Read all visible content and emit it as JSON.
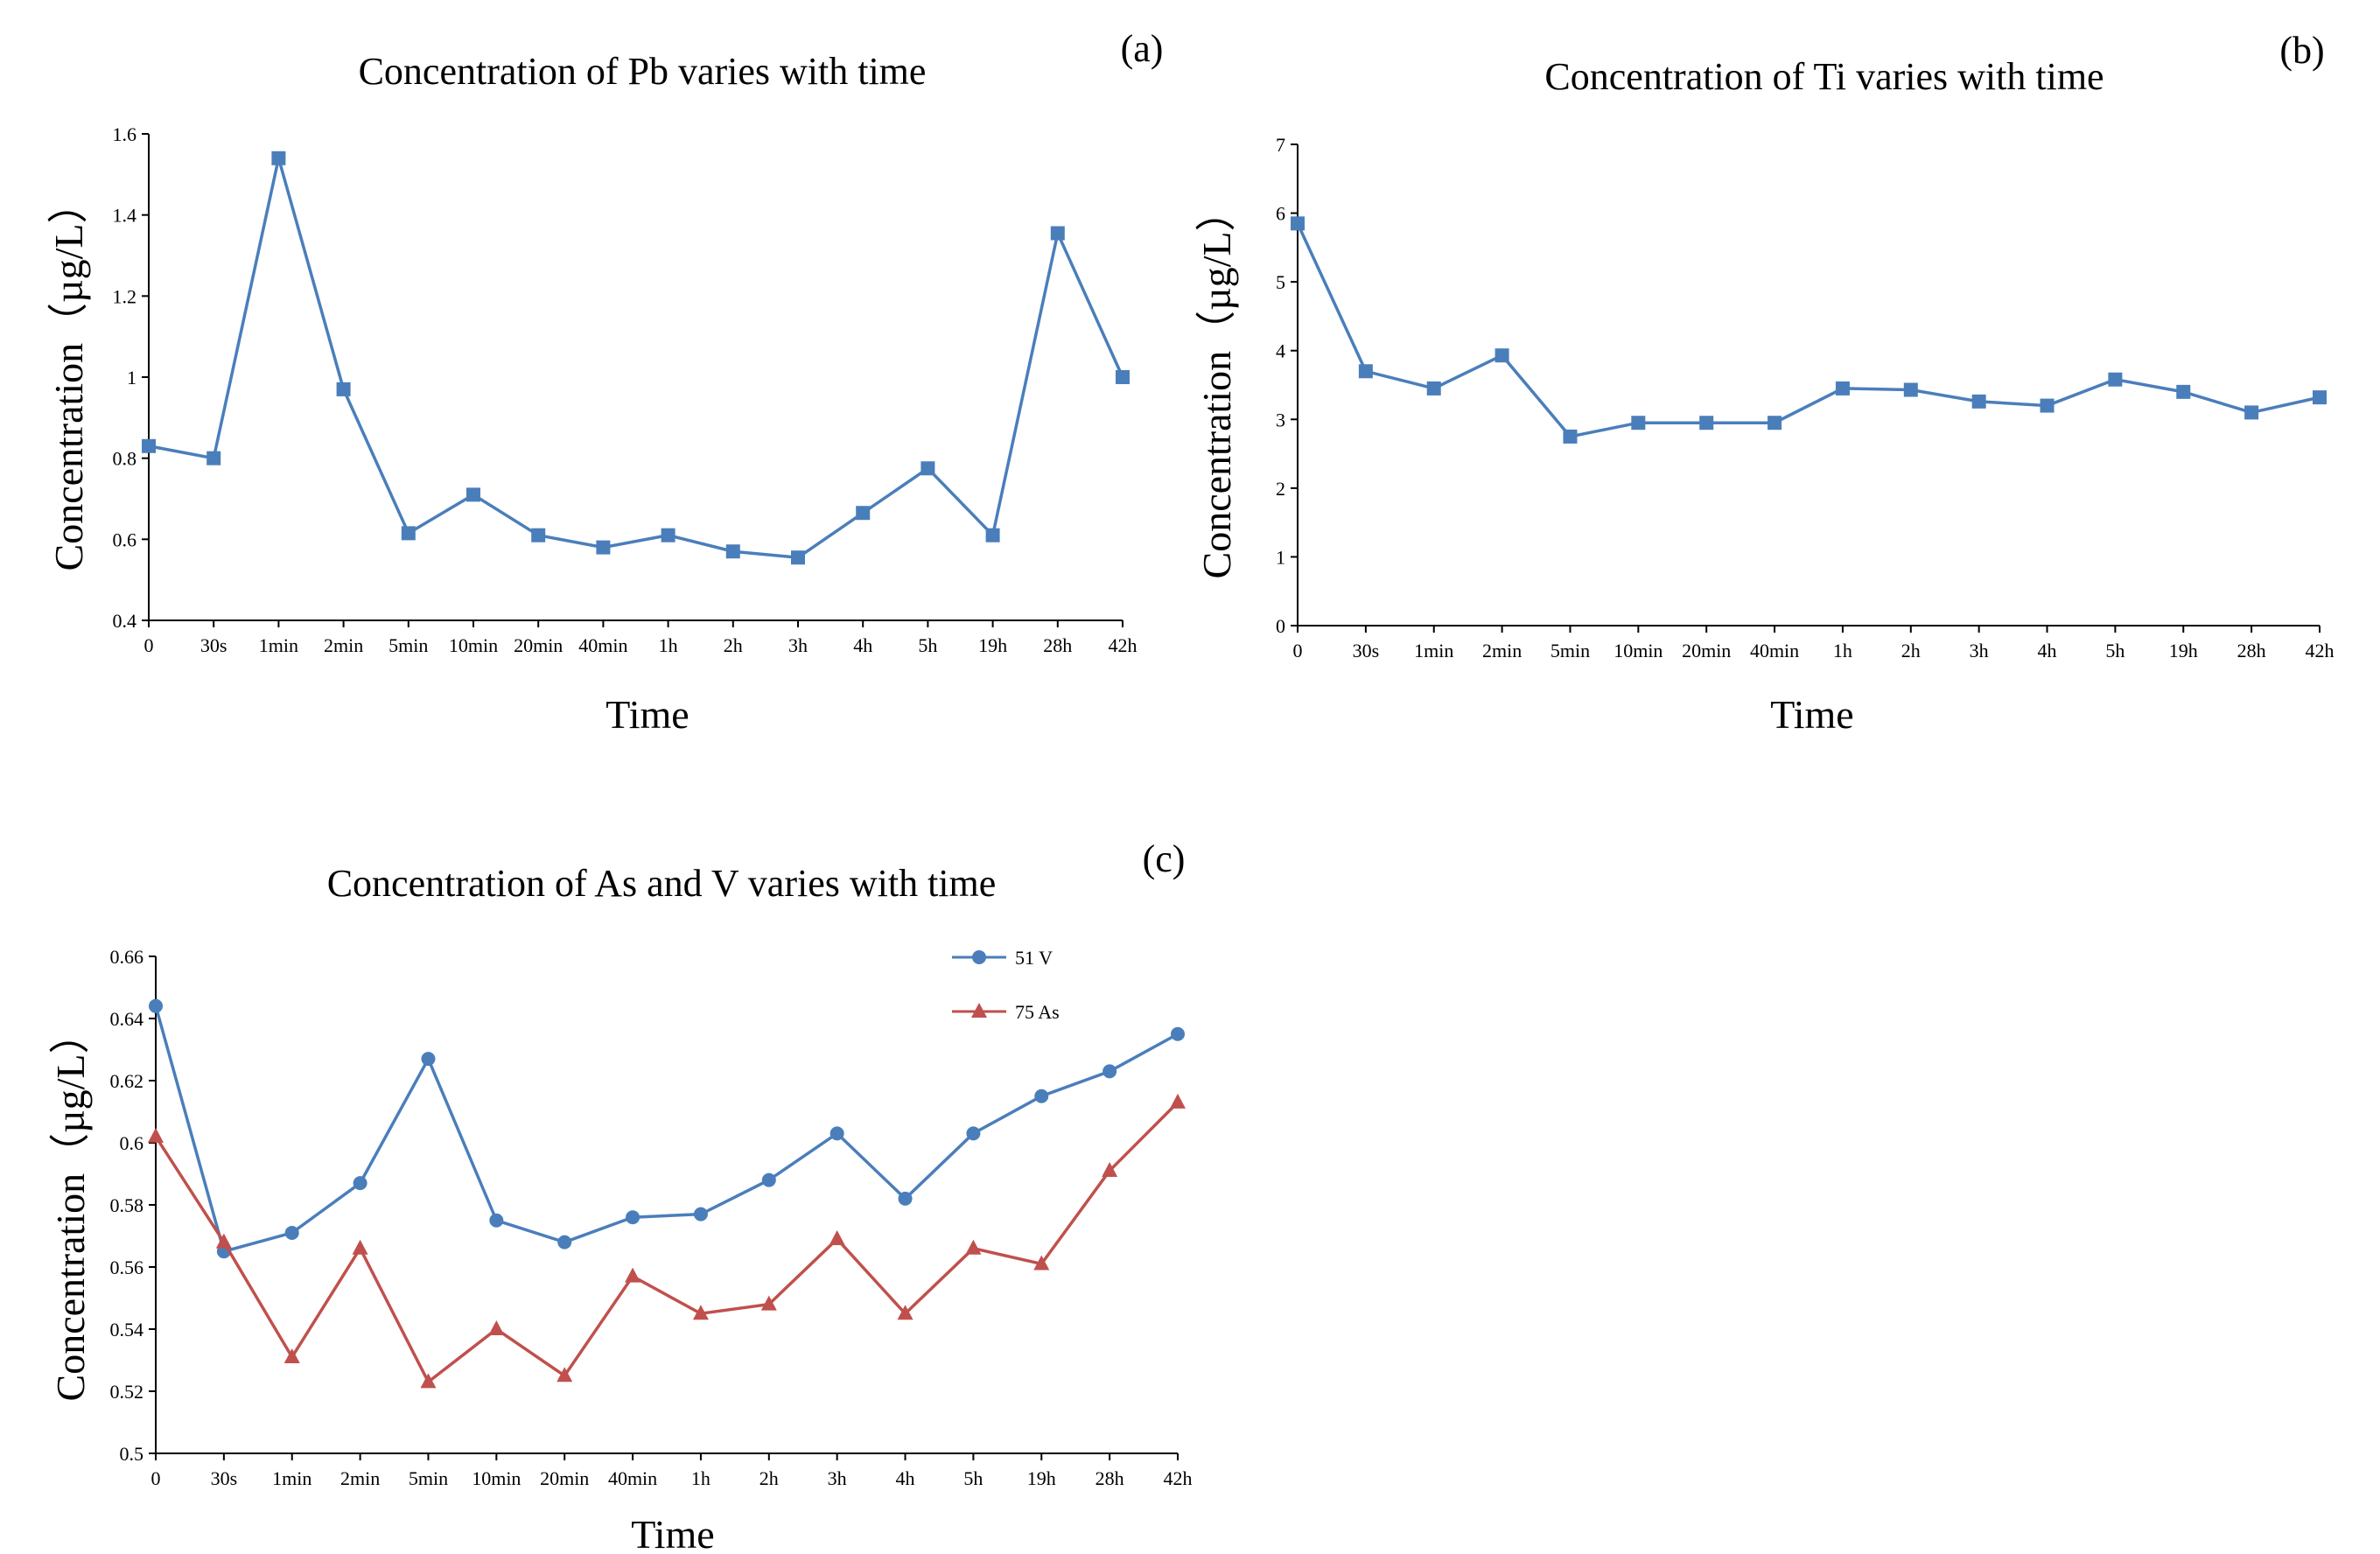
{
  "chart_data": [
    {
      "type": "line",
      "panel_label": "(a)",
      "title": "Concentration of Pb varies with time",
      "xlabel": "Time",
      "ylabel": "Concentration（µg/L）",
      "ylim": [
        0.4,
        1.6
      ],
      "yticks": [
        0.4,
        0.6,
        0.8,
        1,
        1.2,
        1.4,
        1.6
      ],
      "ytick_labels": [
        "0.4",
        "0.6",
        "0.8",
        "1",
        "1.2",
        "1.4",
        "1.6"
      ],
      "categories": [
        "0",
        "30s",
        "1min",
        "2min",
        "5min",
        "10min",
        "20min",
        "40min",
        "1h",
        "2h",
        "3h",
        "4h",
        "5h",
        "19h",
        "28h",
        "42h"
      ],
      "series": [
        {
          "name": "Pb",
          "marker": "square",
          "color": "#4a7ebb",
          "values": [
            0.83,
            0.8,
            1.54,
            0.97,
            0.615,
            0.71,
            0.61,
            0.58,
            0.61,
            0.57,
            0.555,
            0.665,
            0.775,
            0.61,
            1.355,
            1.0
          ]
        }
      ]
    },
    {
      "type": "line",
      "panel_label": "(b)",
      "title": "Concentration of Ti varies with time",
      "xlabel": "Time",
      "ylabel": "Concentration（µg/L）",
      "ylim": [
        0,
        7
      ],
      "yticks": [
        0,
        1,
        2,
        3,
        4,
        5,
        6,
        7
      ],
      "ytick_labels": [
        "0",
        "1",
        "2",
        "3",
        "4",
        "5",
        "6",
        "7"
      ],
      "categories": [
        "0",
        "30s",
        "1min",
        "2min",
        "5min",
        "10min",
        "20min",
        "40min",
        "1h",
        "2h",
        "3h",
        "4h",
        "5h",
        "19h",
        "28h",
        "42h"
      ],
      "series": [
        {
          "name": "Ti",
          "marker": "square",
          "color": "#4a7ebb",
          "values": [
            5.85,
            3.7,
            3.45,
            3.93,
            2.75,
            2.95,
            2.95,
            2.95,
            3.45,
            3.43,
            3.26,
            3.2,
            3.58,
            3.4,
            3.1,
            3.32
          ]
        }
      ]
    },
    {
      "type": "line",
      "panel_label": "(c)",
      "title": "Concentration of As and V varies with time",
      "xlabel": "Time",
      "ylabel": "Concentration（µg/L）",
      "ylim": [
        0.5,
        0.66
      ],
      "yticks": [
        0.5,
        0.52,
        0.54,
        0.56,
        0.58,
        0.6,
        0.62,
        0.64,
        0.66
      ],
      "ytick_labels": [
        "0.5",
        "0.52",
        "0.54",
        "0.56",
        "0.58",
        "0.6",
        "0.62",
        "0.64",
        "0.66"
      ],
      "categories": [
        "0",
        "30s",
        "1min",
        "2min",
        "5min",
        "10min",
        "20min",
        "40min",
        "1h",
        "2h",
        "3h",
        "4h",
        "5h",
        "19h",
        "28h",
        "42h"
      ],
      "legend": "top-right",
      "series": [
        {
          "name": "51 V",
          "marker": "circle",
          "color": "#4a7ebb",
          "values": [
            0.644,
            0.565,
            0.571,
            0.587,
            0.627,
            0.575,
            0.568,
            0.576,
            0.577,
            0.588,
            0.603,
            0.582,
            0.603,
            0.615,
            0.623,
            0.635
          ]
        },
        {
          "name": "75 As",
          "marker": "triangle",
          "color": "#c0504d",
          "values": [
            0.602,
            0.568,
            0.531,
            0.566,
            0.523,
            0.54,
            0.525,
            0.557,
            0.545,
            0.548,
            0.569,
            0.545,
            0.566,
            0.561,
            0.591,
            0.613
          ]
        }
      ]
    }
  ]
}
